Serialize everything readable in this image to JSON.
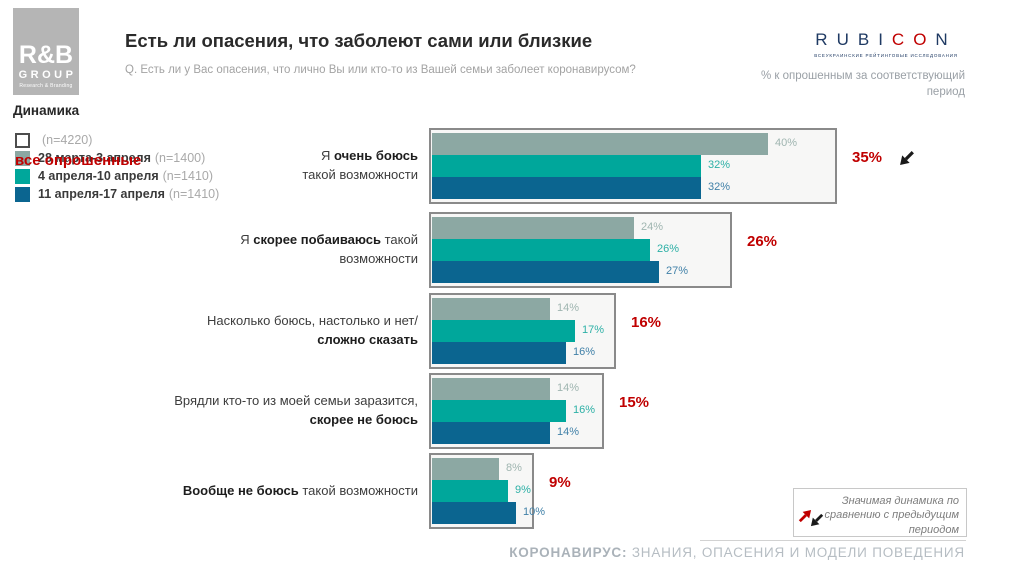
{
  "colors": {
    "accent_red": "#C00000",
    "navy": "#1F3A63",
    "series_gray_green": "#8CA8A3",
    "series_teal": "#00A79B",
    "series_blue": "#0B6590",
    "frame_bg": "#f7f7f6",
    "frame_border": "#8a8a8a"
  },
  "header": {
    "logo": {
      "line1": "R&B",
      "line2": "GROUP",
      "line3": "Research & Branding"
    },
    "section_label": "Динамика",
    "title": "Есть ли опасения, что заболеют сами или близкие",
    "question": "Q. Есть ли у Вас опасения, что лично Вы или кто-то из Вашей семьи заболеет коронавирусом?",
    "rubicon": {
      "part1": "RUBI",
      "part2": "CO",
      "part3": "N",
      "tagline": "ВСЕУКРАИНСКИЕ РЕЙТИНГОВЫЕ ИССЛЕДОВАНИЯ"
    },
    "period_note_line1": "% к опрошенным за соответствующий",
    "period_note_line2": "период"
  },
  "chart_data": {
    "type": "bar",
    "orientation": "horizontal",
    "value_suffix": "%",
    "legend_position": "top-left",
    "xlim": [
      0,
      48
    ],
    "grid": false,
    "categories": [
      {
        "text": "Я очень боюсь такой возможности",
        "lines": [
          [
            {
              "t": "Я ",
              "b": false
            },
            {
              "t": "очень боюсь",
              "b": true
            }
          ],
          [
            {
              "t": "такой возможности",
              "b": false
            }
          ]
        ]
      },
      {
        "text": "Я скорее побаиваюсь такой возможности",
        "lines": [
          [
            {
              "t": "Я ",
              "b": false
            },
            {
              "t": "скорее побаиваюсь",
              "b": true
            },
            {
              "t": " такой",
              "b": false
            }
          ],
          [
            {
              "t": "возможности",
              "b": false
            }
          ]
        ]
      },
      {
        "text": "Насколько боюсь, настолько и нет/ сложно сказать",
        "lines": [
          [
            {
              "t": "Насколько боюсь, настолько и нет/",
              "b": false
            }
          ],
          [
            {
              "t": "сложно сказать",
              "b": true
            }
          ]
        ]
      },
      {
        "text": "Врядли кто-то из моей семьи заразится, скорее не боюсь",
        "lines": [
          [
            {
              "t": "Врядли кто-то из моей семьи заразится,",
              "b": false
            }
          ],
          [
            {
              "t": "скорее не боюсь",
              "b": true
            }
          ]
        ]
      },
      {
        "text": "Вообще не боюсь такой возможности",
        "lines": [
          [
            {
              "t": "Вообще не боюсь",
              "b": true
            },
            {
              "t": " такой возможности",
              "b": false
            }
          ]
        ]
      }
    ],
    "series": [
      {
        "name": "все опрошенные",
        "n": "(n=4220)",
        "color": "#ffffff",
        "label_color": "#C00000",
        "role": "total-frame",
        "values": [
          35,
          26,
          16,
          15,
          9
        ]
      },
      {
        "name": "28 марта-3 апреля",
        "n": "(n=1400)",
        "color": "#8CA8A3",
        "label_color": "#9FB5B0",
        "values": [
          40,
          24,
          14,
          14,
          8
        ]
      },
      {
        "name": "4 апреля-10 апреля",
        "n": "(n=1410)",
        "color": "#00A79B",
        "label_color": "#2DB0A6",
        "values": [
          32,
          26,
          17,
          16,
          9
        ]
      },
      {
        "name": "11 апреля-17 апреля",
        "n": "(n=1410)",
        "color": "#0B6590",
        "label_color": "#4181A8",
        "values": [
          32,
          27,
          16,
          14,
          10
        ]
      }
    ],
    "totals": [
      {
        "value": "35%",
        "arrow": "sw"
      },
      {
        "value": "26%",
        "arrow": null
      },
      {
        "value": "16%",
        "arrow": null
      },
      {
        "value": "15%",
        "arrow": null
      },
      {
        "value": "9%",
        "arrow": null
      }
    ]
  },
  "dynamics_note": {
    "line1": "Значимая динамика по",
    "line2": "сравнению с предыдущим",
    "line3": "периодом"
  },
  "footer": {
    "bold": "КОРОНАВИРУС:",
    "rest": " ЗНАНИЯ, ОПАСЕНИЯ И МОДЕЛИ ПОВЕДЕНИЯ"
  }
}
